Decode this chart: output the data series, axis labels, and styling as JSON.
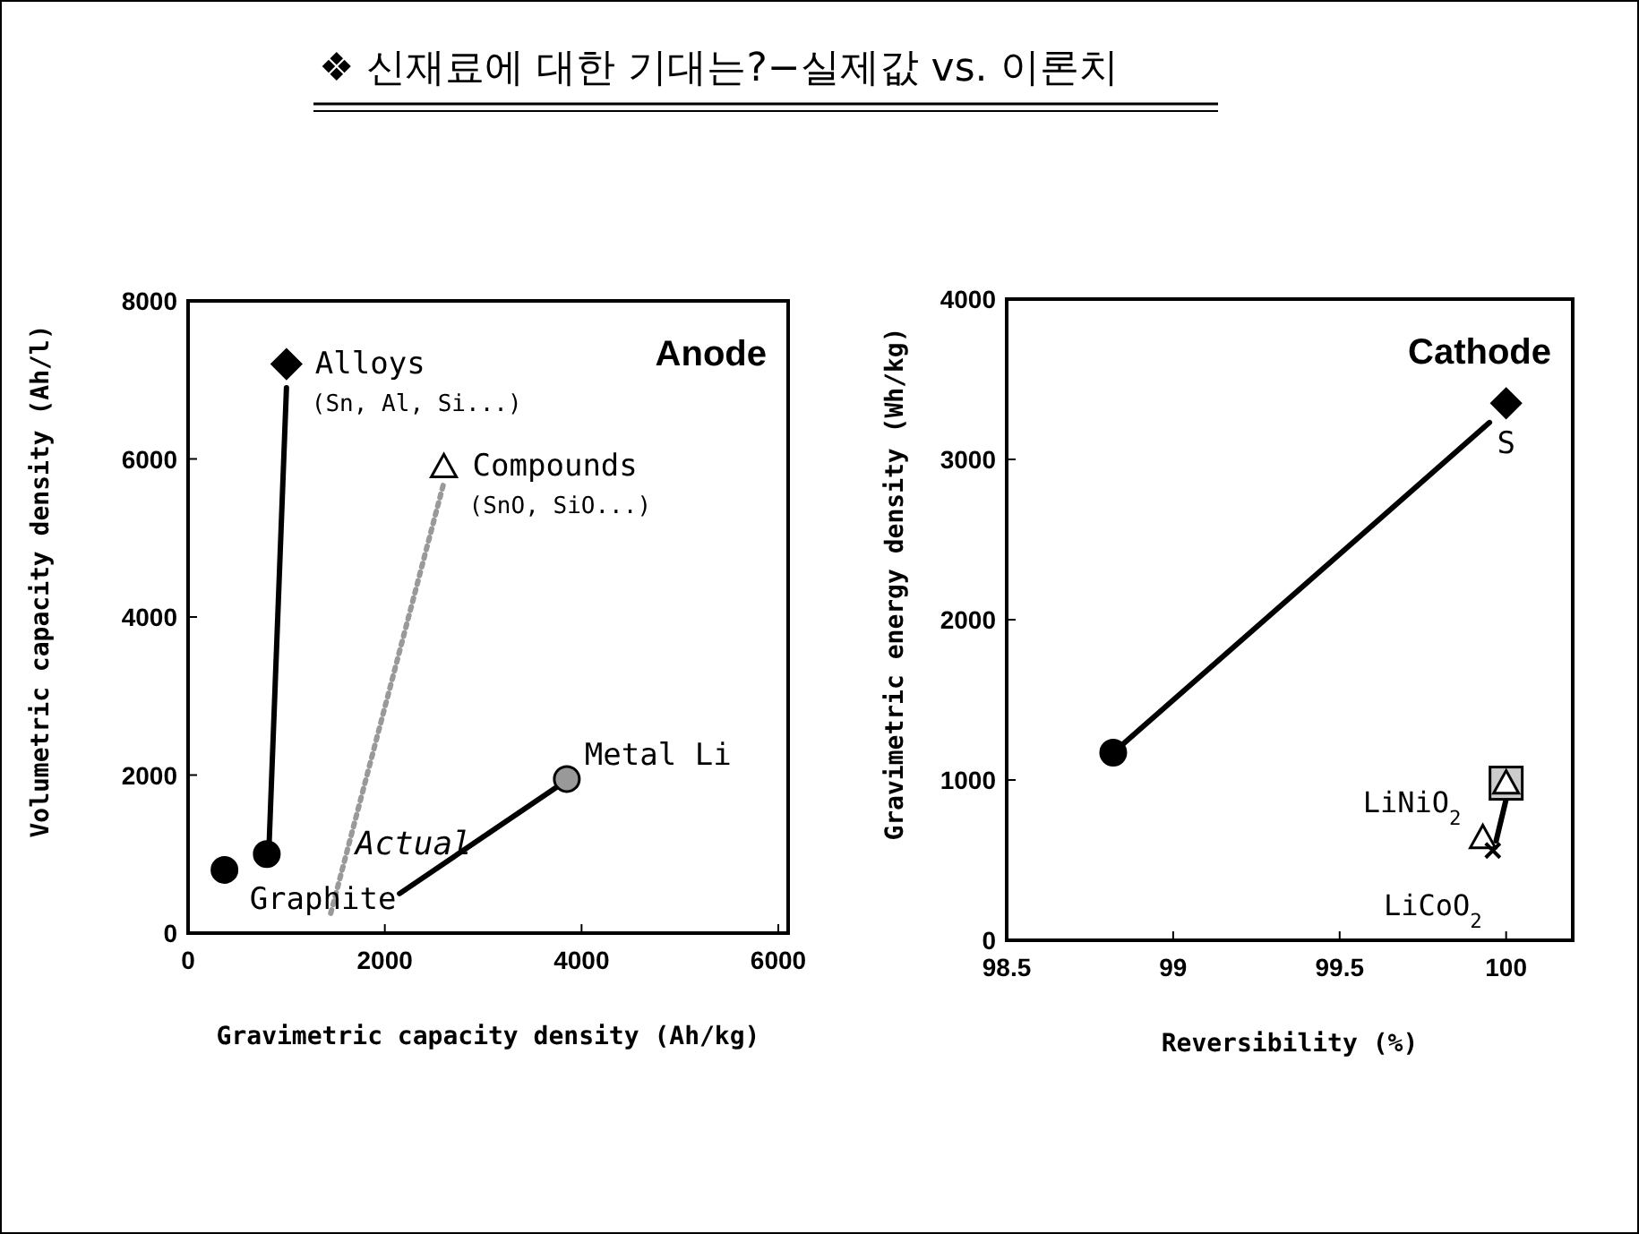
{
  "chart_data": [
    {
      "type": "scatter",
      "title": "❖ 신재료에 대한 기대는?−실제값 vs. 이론치",
      "xlabel": "Gravimetric capacity density (Ah/kg)",
      "ylabel": "Volumetric capacity density (Ah/l)",
      "xlim": [
        0,
        6100
      ],
      "ylim": [
        0,
        8000
      ],
      "xticks": [
        0,
        2000,
        4000,
        6000
      ],
      "yticks": [
        0,
        2000,
        4000,
        6000,
        8000
      ],
      "grid": false,
      "series": [
        {
          "type": "line",
          "x": [
            820,
            1000
          ],
          "values": [
            1000,
            6900
          ],
          "color": "#000000",
          "line_style": "solid",
          "marker": "none"
        },
        {
          "type": "line",
          "x": [
            1450,
            2600
          ],
          "values": [
            250,
            5700
          ],
          "color": "#999999",
          "line_style": "dotted",
          "marker": "none"
        },
        {
          "type": "line",
          "x": [
            2150,
            3750
          ],
          "values": [
            500,
            1850
          ],
          "color": "#000000",
          "line_style": "solid",
          "marker": "none"
        },
        {
          "x": [
            1000
          ],
          "values": [
            7200
          ],
          "color": "#000000",
          "marker": "diamond"
        },
        {
          "x": [
            2600
          ],
          "values": [
            5900
          ],
          "color": "#ffffff",
          "marker": "triangle"
        },
        {
          "x": [
            3850
          ],
          "values": [
            1950
          ],
          "color": "#999999",
          "marker": "circle"
        },
        {
          "x": [
            370
          ],
          "values": [
            800
          ],
          "color": "#000000",
          "marker": "circle"
        },
        {
          "x": [
            800
          ],
          "values": [
            1000
          ],
          "color": "#000000",
          "marker": "circle"
        }
      ],
      "annotations": [
        "Anode",
        {
          "text": "Alloys",
          "x": 1000,
          "y": 7200
        },
        {
          "text": "(Sn, Al, Si...)",
          "x": 1000,
          "y": 7200
        },
        {
          "text": "Compounds",
          "x": 2600,
          "y": 5900
        },
        {
          "text": "(SnO, SiO...)",
          "x": 2600,
          "y": 5900
        },
        {
          "text": "Metal Li",
          "x": 3850,
          "y": 1950
        },
        {
          "text": "Actual",
          "x": 1700,
          "y": 1000
        },
        {
          "text": "Graphite",
          "x": 370,
          "y": 800
        }
      ]
    },
    {
      "type": "scatter",
      "xlabel": "Reversibility (%)",
      "ylabel": "Gravimetric energy density (Wh/kg)",
      "xlim": [
        98.5,
        100.2
      ],
      "ylim": [
        0,
        4000
      ],
      "xticks": [
        {
          "value": 98.5,
          "label": "98.5"
        },
        99,
        {
          "value": 99.5,
          "label": "99.5"
        },
        100
      ],
      "yticks": [
        0,
        1000,
        2000,
        3000,
        4000
      ],
      "grid": false,
      "series": [
        {
          "type": "line",
          "x": [
            98.82,
            99.95
          ],
          "values": [
            1170,
            3230
          ],
          "color": "#000000",
          "line_style": "solid",
          "marker": "none"
        },
        {
          "type": "line",
          "x": [
            99.97,
            100
          ],
          "values": [
            620,
            880
          ],
          "color": "#000000",
          "line_style": "solid",
          "marker": "none"
        },
        {
          "x": [
            98.82
          ],
          "values": [
            1170
          ],
          "color": "#000000",
          "marker": "circle"
        },
        {
          "x": [
            100
          ],
          "values": [
            3350
          ],
          "color": "#000000",
          "marker": "diamond"
        },
        {
          "x": [
            100
          ],
          "values": [
            980
          ],
          "color": "#cccccc",
          "marker": "square"
        },
        {
          "x": [
            100
          ],
          "values": [
            980
          ],
          "color": "#ffffff",
          "marker": "triangle"
        },
        {
          "x": [
            99.93
          ],
          "values": [
            640
          ],
          "color": "#ffffff",
          "marker": "triangle"
        },
        {
          "x": [
            99.96
          ],
          "values": [
            560
          ],
          "color": "#000000",
          "marker": "cross"
        }
      ],
      "annotations": [
        "Cathode",
        {
          "text": "S",
          "x": 100,
          "y": 3350
        },
        {
          "text": "LiNiO$_{2}$",
          "x": 99.93,
          "y": 640
        },
        {
          "text": "LiCoO$_{2}$",
          "x": 99.96,
          "y": 560
        }
      ]
    }
  ]
}
